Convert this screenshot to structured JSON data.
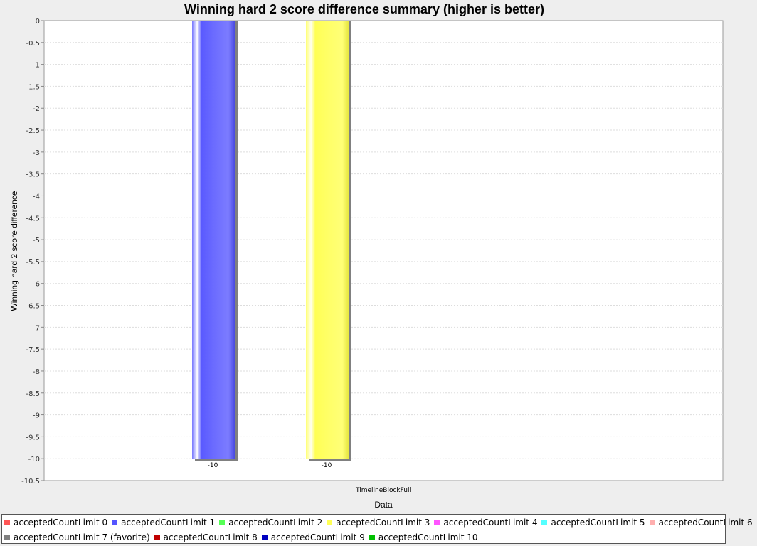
{
  "chart_data": {
    "type": "bar",
    "title": "Winning hard 2 score difference summary (higher is better)",
    "xlabel": "Data",
    "ylabel": "Winning hard 2 score difference",
    "categories": [
      "TimelineBlockFull"
    ],
    "ylim": [
      -10.5,
      0
    ],
    "yticks": [
      0,
      -0.5,
      -1,
      -1.5,
      -2,
      -2.5,
      -3,
      -3.5,
      -4,
      -4.5,
      -5,
      -5.5,
      -6,
      -6.5,
      -7,
      -7.5,
      -8,
      -8.5,
      -9,
      -9.5,
      -10,
      -10.5
    ],
    "grid": true,
    "legend_position": "bottom",
    "series": [
      {
        "name": "acceptedCountLimit 0",
        "color": "#ff5555",
        "values": [
          null
        ]
      },
      {
        "name": "acceptedCountLimit 1",
        "color": "#5555ff",
        "values": [
          -10
        ],
        "label": "-10"
      },
      {
        "name": "acceptedCountLimit 2",
        "color": "#55ff55",
        "values": [
          null
        ]
      },
      {
        "name": "acceptedCountLimit 3",
        "color": "#ffff55",
        "values": [
          -10
        ],
        "label": "-10"
      },
      {
        "name": "acceptedCountLimit 4",
        "color": "#ff55ff",
        "values": [
          null
        ]
      },
      {
        "name": "acceptedCountLimit 5",
        "color": "#55ffff",
        "values": [
          null
        ]
      },
      {
        "name": "acceptedCountLimit 6",
        "color": "#ffafaf",
        "values": [
          null
        ]
      },
      {
        "name": "acceptedCountLimit 7 (favorite)",
        "color": "#808080",
        "values": [
          null
        ]
      },
      {
        "name": "acceptedCountLimit 8",
        "color": "#c00000",
        "values": [
          null
        ]
      },
      {
        "name": "acceptedCountLimit 9",
        "color": "#0000c0",
        "values": [
          null
        ]
      },
      {
        "name": "acceptedCountLimit 10",
        "color": "#00c000",
        "values": [
          null
        ]
      }
    ]
  }
}
